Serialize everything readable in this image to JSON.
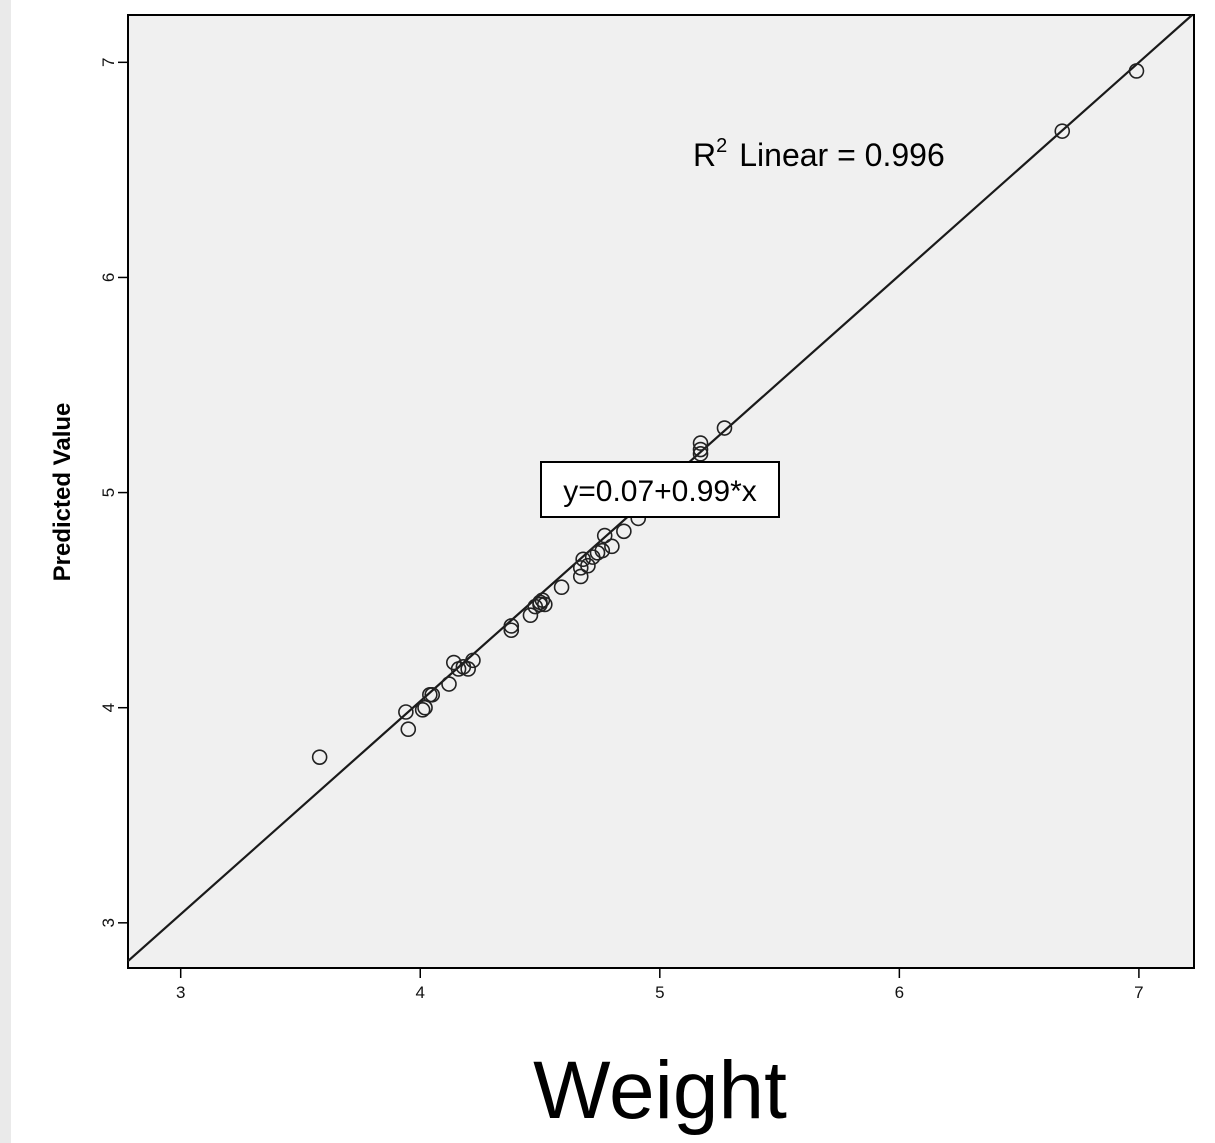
{
  "chart_data": {
    "type": "scatter",
    "xlabel": "Weight",
    "ylabel": "Predicted Value",
    "xlim": [
      2.78,
      7.23
    ],
    "ylim": [
      2.79,
      7.22
    ],
    "x_ticks": [
      "3",
      "4",
      "5",
      "6",
      "7"
    ],
    "y_ticks": [
      "3",
      "4",
      "5",
      "6",
      "7"
    ],
    "grid": false,
    "background": "#f0f0f0",
    "marker": "open-circle",
    "fit_line": {
      "intercept": 0.07,
      "slope": 0.99,
      "equation_label": "y=0.07+0.99*x",
      "r2_prefix": "R",
      "r2_sup": "2",
      "r2_text": "Linear = 0.996"
    },
    "points": [
      {
        "x": 3.58,
        "y": 3.77
      },
      {
        "x": 3.94,
        "y": 3.98
      },
      {
        "x": 3.95,
        "y": 3.9
      },
      {
        "x": 4.01,
        "y": 3.99
      },
      {
        "x": 4.02,
        "y": 4.0
      },
      {
        "x": 4.05,
        "y": 4.06
      },
      {
        "x": 4.04,
        "y": 4.06
      },
      {
        "x": 4.12,
        "y": 4.11
      },
      {
        "x": 4.14,
        "y": 4.21
      },
      {
        "x": 4.16,
        "y": 4.18
      },
      {
        "x": 4.18,
        "y": 4.19
      },
      {
        "x": 4.2,
        "y": 4.18
      },
      {
        "x": 4.22,
        "y": 4.22
      },
      {
        "x": 4.38,
        "y": 4.36
      },
      {
        "x": 4.38,
        "y": 4.38
      },
      {
        "x": 4.46,
        "y": 4.43
      },
      {
        "x": 4.48,
        "y": 4.47
      },
      {
        "x": 4.5,
        "y": 4.48
      },
      {
        "x": 4.51,
        "y": 4.5
      },
      {
        "x": 4.52,
        "y": 4.48
      },
      {
        "x": 4.5,
        "y": 4.49
      },
      {
        "x": 4.59,
        "y": 4.56
      },
      {
        "x": 4.67,
        "y": 4.61
      },
      {
        "x": 4.67,
        "y": 4.65
      },
      {
        "x": 4.68,
        "y": 4.69
      },
      {
        "x": 4.7,
        "y": 4.66
      },
      {
        "x": 4.72,
        "y": 4.7
      },
      {
        "x": 4.74,
        "y": 4.72
      },
      {
        "x": 4.76,
        "y": 4.73
      },
      {
        "x": 4.77,
        "y": 4.8
      },
      {
        "x": 4.8,
        "y": 4.75
      },
      {
        "x": 4.85,
        "y": 4.82
      },
      {
        "x": 4.91,
        "y": 4.88
      },
      {
        "x": 5.17,
        "y": 5.18
      },
      {
        "x": 5.17,
        "y": 5.2
      },
      {
        "x": 5.17,
        "y": 5.23
      },
      {
        "x": 5.27,
        "y": 5.3
      },
      {
        "x": 6.68,
        "y": 6.68
      },
      {
        "x": 6.99,
        "y": 6.96
      }
    ]
  }
}
